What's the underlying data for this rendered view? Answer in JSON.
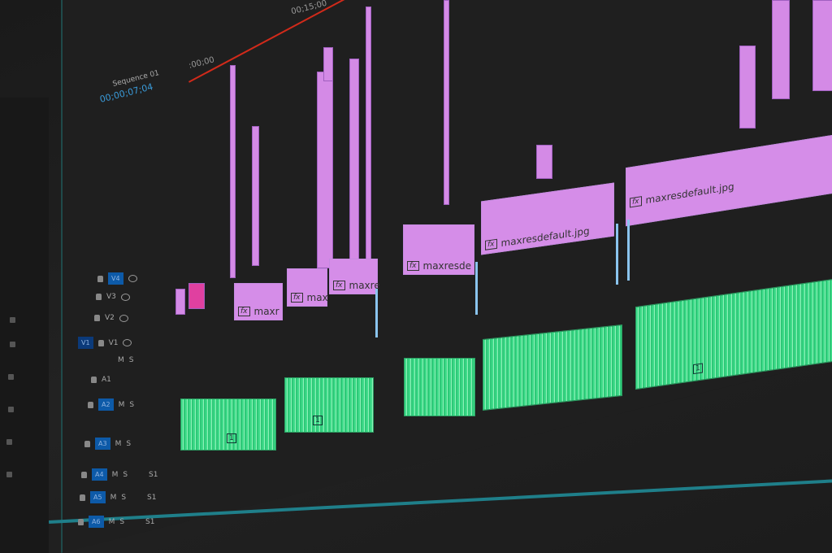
{
  "sequence": {
    "name": "Sequence 01",
    "timecode": "00;00;07;04"
  },
  "ruler": {
    "start": ":00;00",
    "mark": "00;15;00"
  },
  "tracks": {
    "source_video": "V1",
    "video": [
      {
        "label": "V4",
        "active": true
      },
      {
        "label": "V3"
      },
      {
        "label": "V2"
      },
      {
        "label": "V1"
      }
    ],
    "audio": [
      {
        "label": "A1"
      },
      {
        "label": "A2",
        "active": true
      },
      {
        "label": "A3",
        "active": true
      },
      {
        "label": "A4",
        "active": true
      },
      {
        "label": "A5",
        "active": true
      },
      {
        "label": "A6",
        "active": true
      }
    ],
    "mute_label": "M",
    "solo_label": "S",
    "submix_label": "S1"
  },
  "clips": [
    {
      "label": "maxr",
      "fx": "fx"
    },
    {
      "label": "max",
      "fx": "fx"
    },
    {
      "label": "maxre",
      "fx": "fx"
    },
    {
      "label": "maxresde",
      "fx": "fx"
    },
    {
      "label": "maxresdefault.jpg",
      "fx": "fx"
    },
    {
      "label": "maxresdefault.jpg",
      "fx": "fx"
    }
  ],
  "audio_clip_markers": [
    "1",
    "1",
    "1"
  ],
  "colors": {
    "video_clip": "#d58de8",
    "audio_clip": "#3fdc8a",
    "playhead": "#d12a1a",
    "track_target": "#0b3a7a",
    "background": "#1f1f1f"
  }
}
